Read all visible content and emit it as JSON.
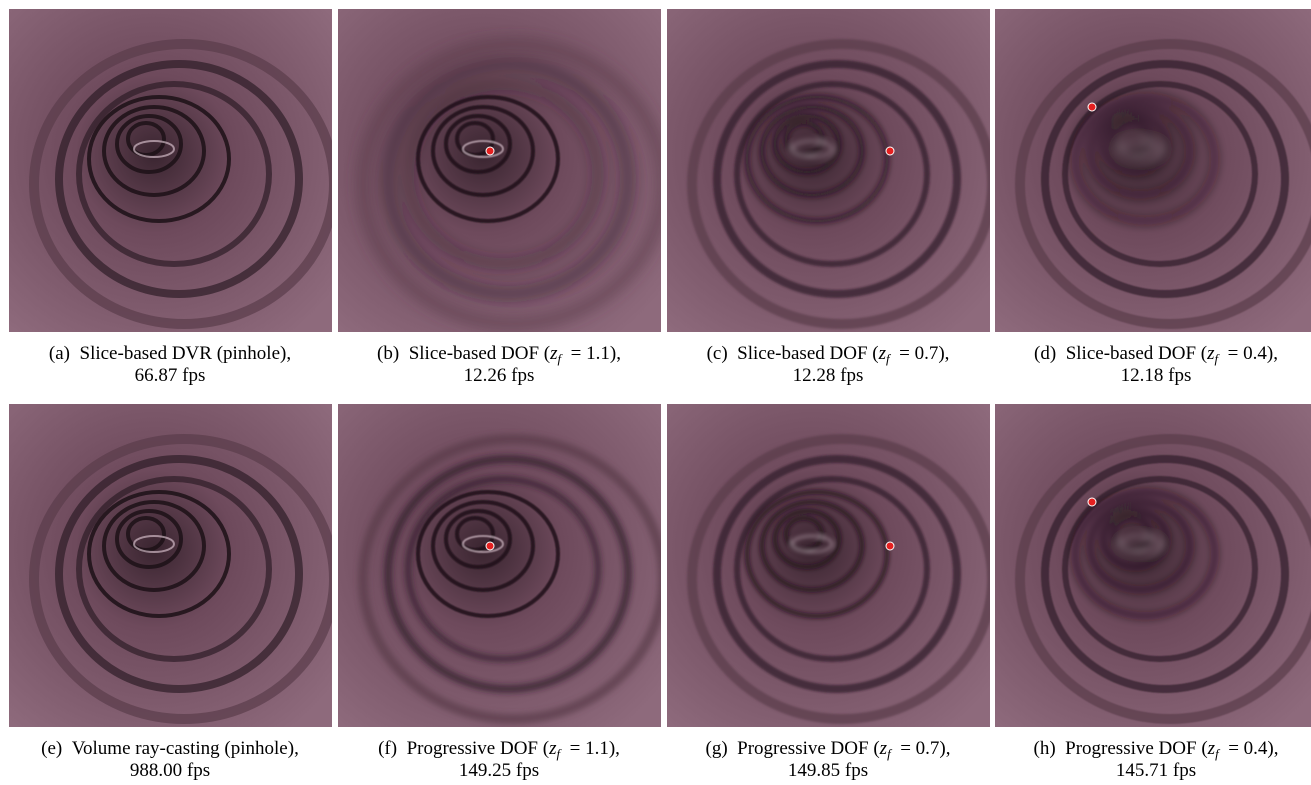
{
  "panels": [
    {
      "label": "(a)",
      "line1": "Slice-based DVR (pinhole),",
      "line2": "66.87 fps"
    },
    {
      "label": "(b)",
      "line1": "Slice-based DOF (",
      "var": "z",
      "sub": "f",
      "eq": "= 1.1",
      "end": "),",
      "line2": "12.26 fps"
    },
    {
      "label": "(c)",
      "line1": "Slice-based DOF (",
      "var": "z",
      "sub": "f",
      "eq": "= 0.7",
      "end": "),",
      "line2": "12.28 fps"
    },
    {
      "label": "(d)",
      "line1": "Slice-based DOF (",
      "var": "z",
      "sub": "f",
      "eq": "= 0.4",
      "end": "),",
      "line2": "12.18 fps"
    },
    {
      "label": "(e)",
      "line1": "Volume ray-casting (pinhole),",
      "line2": "988.00 fps"
    },
    {
      "label": "(f)",
      "line1": "Progressive DOF (",
      "var": "z",
      "sub": "f",
      "eq": "= 1.1",
      "end": "),",
      "line2": "149.25 fps"
    },
    {
      "label": "(g)",
      "line1": "Progressive DOF (",
      "var": "z",
      "sub": "f",
      "eq": "= 0.7",
      "end": "),",
      "line2": "149.85 fps"
    },
    {
      "label": "(h)",
      "line1": "Progressive DOF (",
      "var": "z",
      "sub": "f",
      "eq": "= 0.4",
      "end": "),",
      "line2": "145.71 fps"
    }
  ]
}
